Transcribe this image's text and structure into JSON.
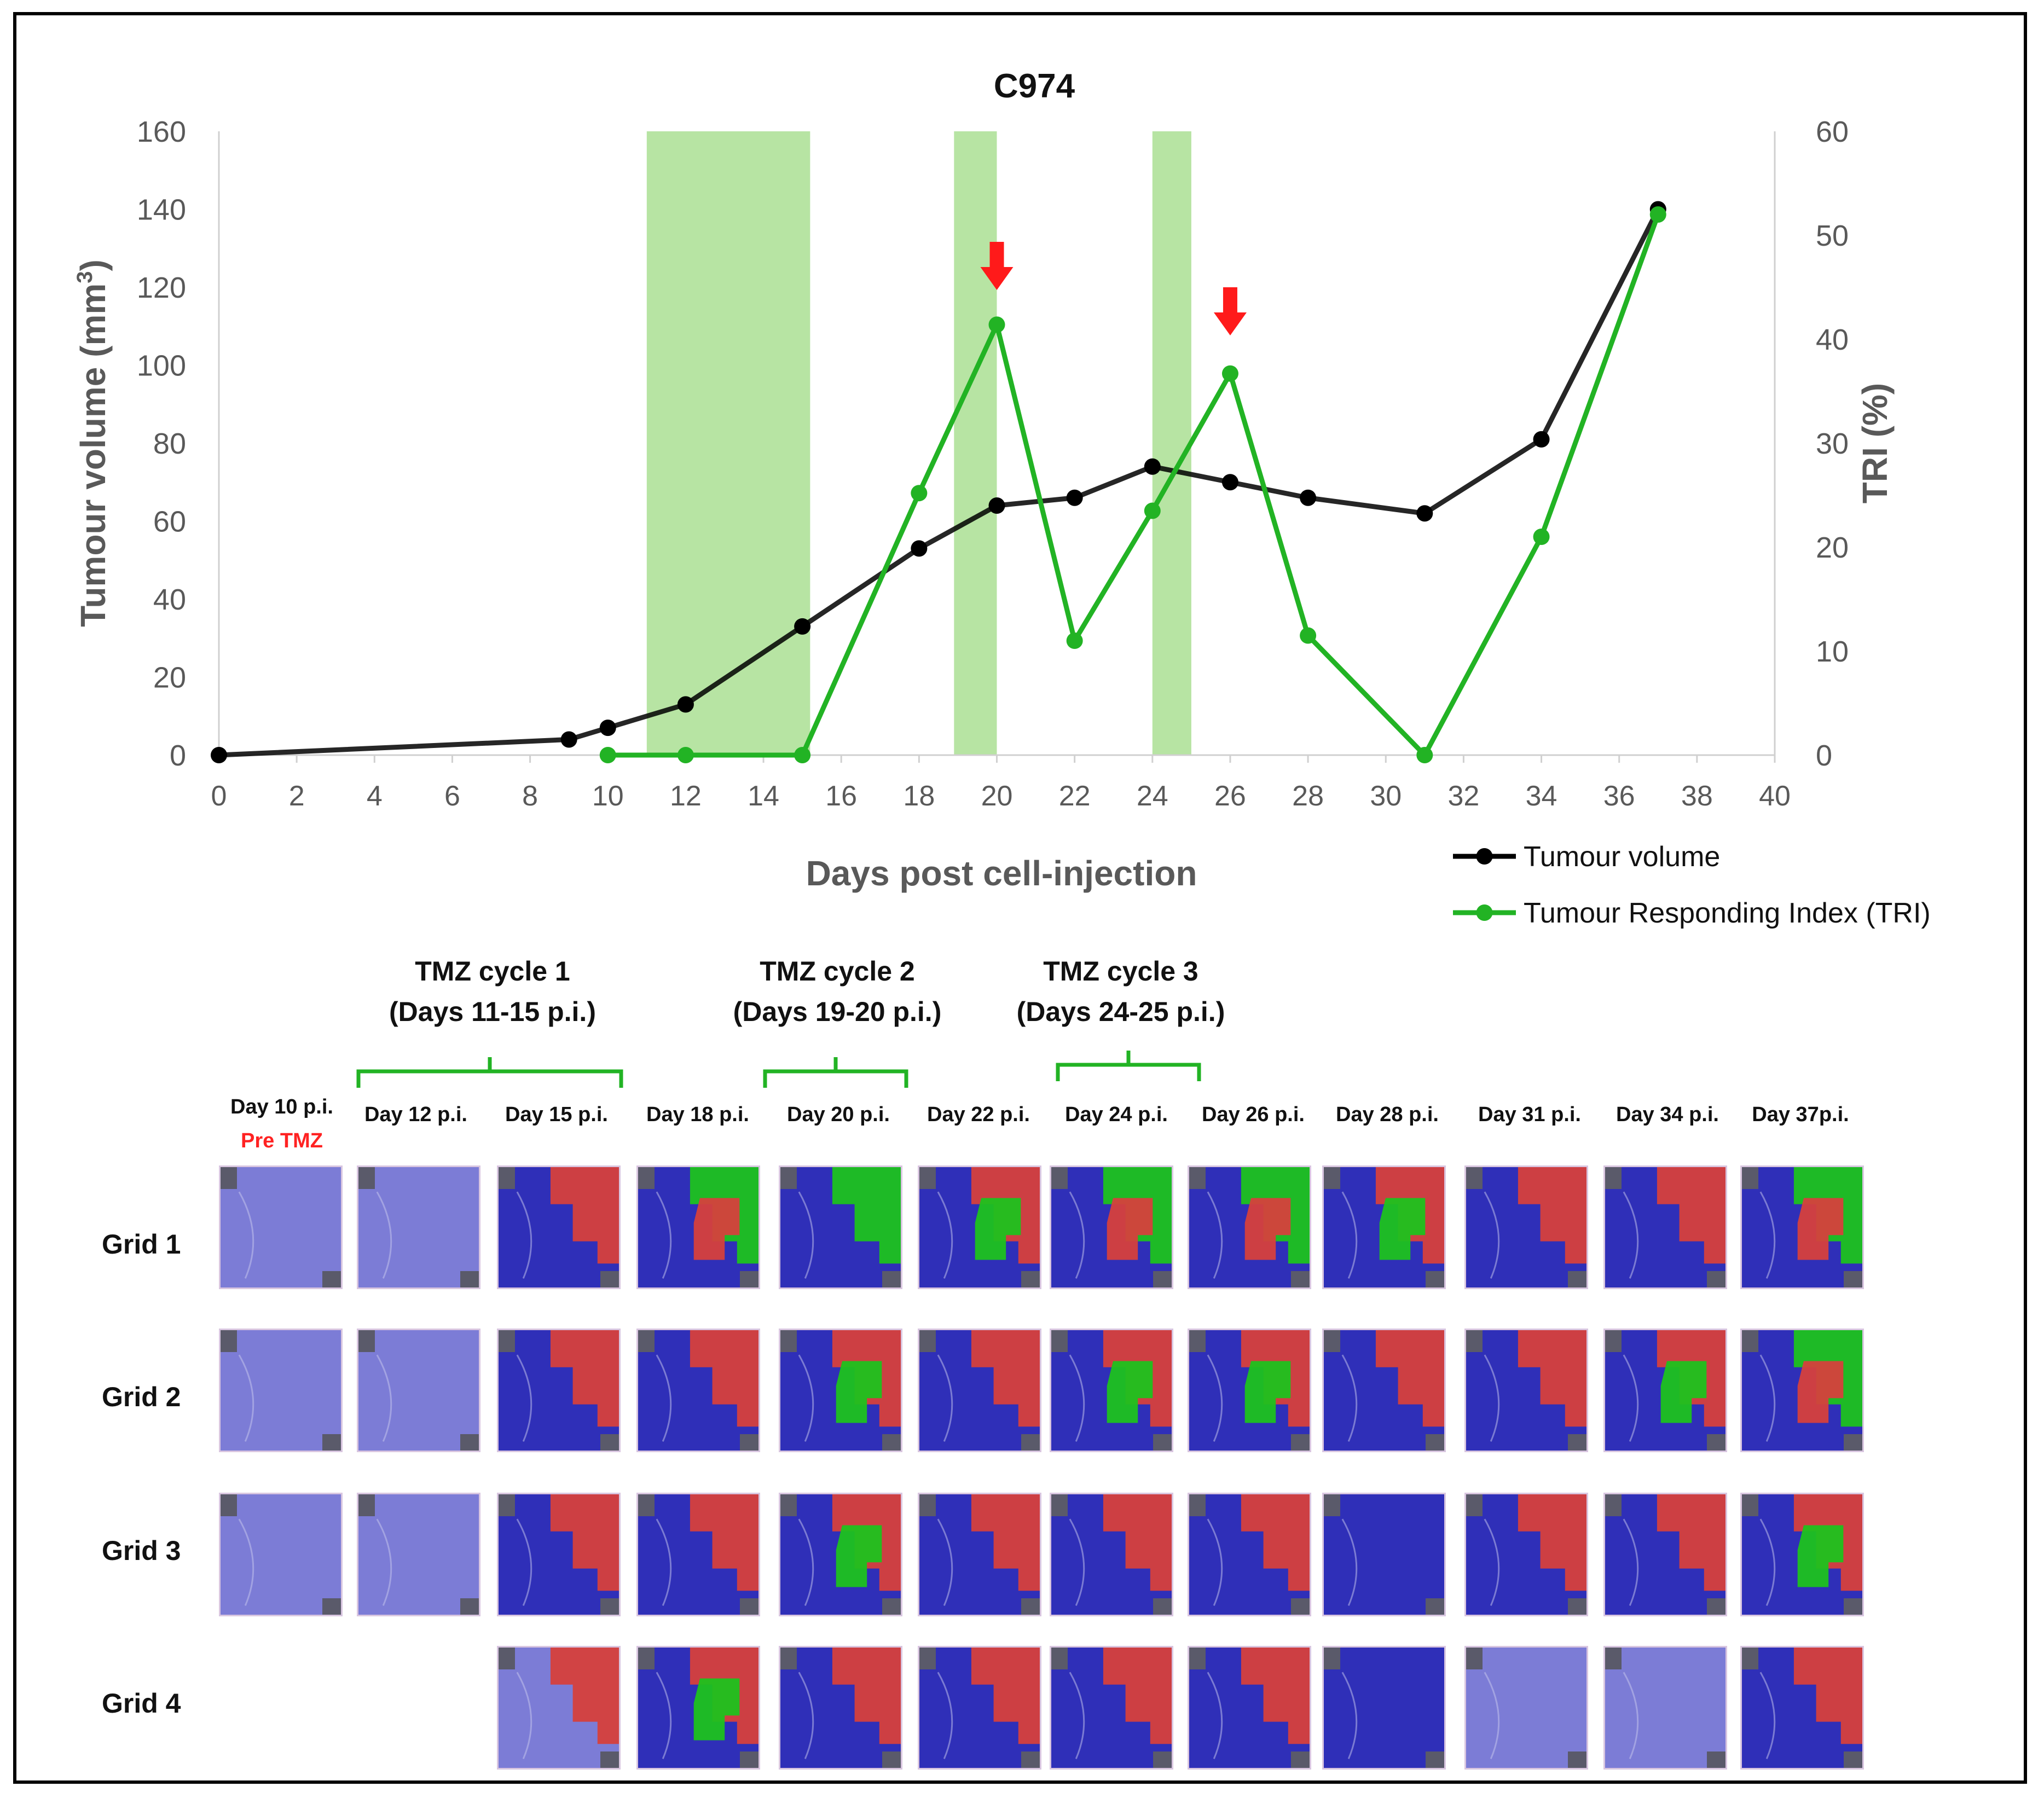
{
  "chart_data": {
    "type": "line",
    "title": "C974",
    "xlabel": "Days post cell-injection",
    "ylabel": "Tumour volume (mm3)",
    "ylabel_main": "Tumour volume (mm",
    "ylabel_sup": "3",
    "ylabel_close": ")",
    "y2label": "TRI (%)",
    "xlim": [
      0,
      40
    ],
    "ylim": [
      0,
      160
    ],
    "y2lim": [
      0,
      60
    ],
    "x_ticks": [
      "0",
      "2",
      "4",
      "6",
      "8",
      "10",
      "12",
      "14",
      "16",
      "18",
      "20",
      "22",
      "24",
      "26",
      "28",
      "30",
      "32",
      "34",
      "36",
      "38",
      "40"
    ],
    "y_ticks": [
      "0",
      "20",
      "40",
      "60",
      "80",
      "100",
      "120",
      "140",
      "160"
    ],
    "y2_ticks": [
      "0",
      "10",
      "20",
      "30",
      "40",
      "50",
      "60"
    ],
    "shaded_periods": [
      [
        11,
        15.2
      ],
      [
        18.9,
        20.0
      ],
      [
        24.0,
        25.0
      ]
    ],
    "arrows_at_day": [
      20,
      26
    ],
    "series": [
      {
        "name": "Tumour volume",
        "axis": "left",
        "color": "#000000",
        "x": [
          0,
          9,
          10,
          12,
          15,
          18,
          20,
          22,
          24,
          26,
          28,
          31,
          34,
          37
        ],
        "values": [
          0,
          4,
          7,
          13,
          33,
          53,
          64,
          66,
          74,
          70,
          66,
          62,
          81,
          140
        ]
      },
      {
        "name": "Tumour Responding Index (TRI)",
        "axis": "right",
        "color": "#22b324",
        "x": [
          10,
          12,
          15,
          18,
          20,
          22,
          24,
          26,
          28,
          31,
          34,
          37
        ],
        "values": [
          0,
          0,
          0,
          25.2,
          41.4,
          11.0,
          23.5,
          36.7,
          11.5,
          0,
          21.0,
          52.0
        ]
      }
    ]
  },
  "cycles": [
    {
      "line1": "TMZ cycle 1",
      "line2": "(Days 11-15 p.i.)"
    },
    {
      "line1": "TMZ cycle 2",
      "line2": "(Days 19-20 p.i.)"
    },
    {
      "line1": "TMZ cycle 3",
      "line2": "(Days 24-25 p.i.)"
    }
  ],
  "days": [
    "Day 10 p.i.",
    "Day 12 p.i.",
    "Day 15 p.i.",
    "Day 18 p.i.",
    "Day 20 p.i.",
    "Day 22 p.i.",
    "Day 24 p.i.",
    "Day 26 p.i.",
    "Day 28 p.i.",
    "Day 31 p.i.",
    "Day 34 p.i.",
    "Day 37p.i."
  ],
  "pre_tmz": "Pre TMZ",
  "grids": [
    "Grid 1",
    "Grid 2",
    "Grid 3",
    "Grid 4"
  ],
  "tile_colors": {
    "responding": "#1ec21e",
    "non_responding": "#d6403c",
    "tumour_free": "#2f2fb8",
    "background": "#7c7cd6"
  }
}
